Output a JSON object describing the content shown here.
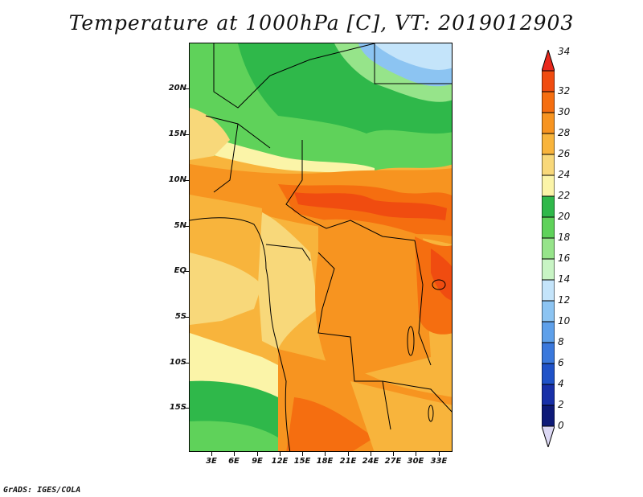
{
  "title": "Temperature at 1000hPa [C], VT: 2019012903",
  "footer": "GrADS: IGES/COLA",
  "map": {
    "lat_labels": [
      "20N",
      "15N",
      "10N",
      "5N",
      "EQ",
      "5S",
      "10S",
      "15S"
    ],
    "lon_labels": [
      "3E",
      "6E",
      "9E",
      "12E",
      "15E",
      "18E",
      "21E",
      "24E",
      "27E",
      "30E",
      "33E"
    ]
  },
  "colorbar": {
    "labels": [
      "34",
      "32",
      "30",
      "28",
      "26",
      "24",
      "22",
      "20",
      "18",
      "16",
      "14",
      "12",
      "10",
      "8",
      "6",
      "4",
      "2",
      "0"
    ],
    "colors": [
      "#e8281c",
      "#f04c10",
      "#f56e10",
      "#f79420",
      "#f8b43c",
      "#f8d87a",
      "#fbf4a8",
      "#2fb84a",
      "#5fd25a",
      "#96e48a",
      "#c8f4c4",
      "#c4e4fa",
      "#8cc4f2",
      "#5ea0ea",
      "#3a78dc",
      "#1f52c8",
      "#1830a8",
      "#0e1a78",
      "#dcd8f4"
    ]
  }
}
